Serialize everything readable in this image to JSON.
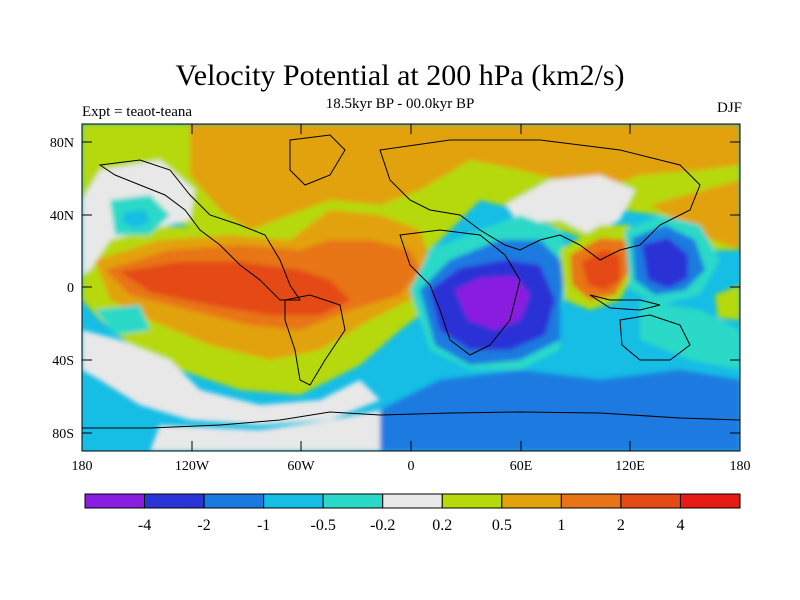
{
  "title": "Velocity Potential at 200 hPa (km2/s)",
  "subtitle": "18.5kyr BP - 00.0kyr BP",
  "left_label": "Expt = teaot-teana",
  "right_label": "DJF",
  "lat_ticks": [
    "80N",
    "40N",
    "0",
    "40S",
    "80S"
  ],
  "lon_ticks": [
    "180",
    "120W",
    "60W",
    "0",
    "60E",
    "120E",
    "180"
  ],
  "colorbar": {
    "colors": [
      "#8a1ee0",
      "#2a33d6",
      "#1b7ae0",
      "#16bde5",
      "#2ad9c8",
      "#e8e8e8",
      "#b5d90a",
      "#e2a20c",
      "#e87419",
      "#e44a16",
      "#e81a14"
    ],
    "labels": [
      "-4",
      "-2",
      "-1",
      "-0.5",
      "-0.2",
      "0.2",
      "0.5",
      "1",
      "2",
      "4"
    ]
  }
}
